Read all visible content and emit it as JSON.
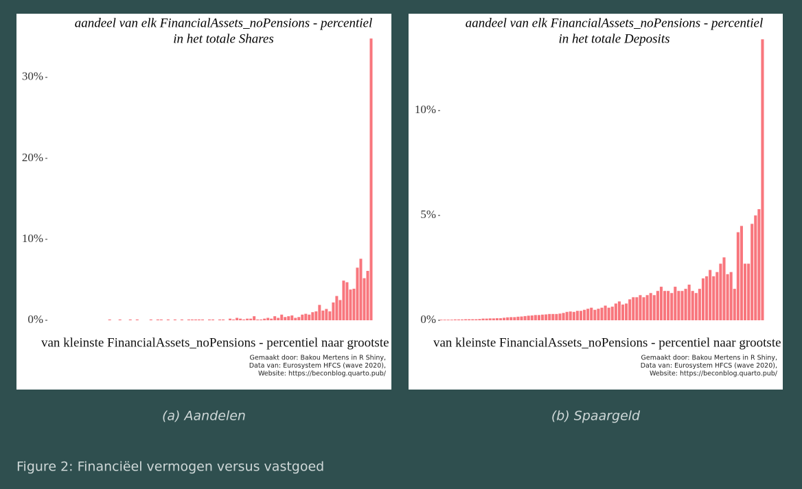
{
  "chart_data": [
    {
      "type": "bar",
      "title": [
        "aandeel van elk FinancialAssets_noPensions - percentiel",
        "in het totale Shares"
      ],
      "x_label": "van kleinste FinancialAssets_noPensions - percentiel naar grootste",
      "credits": [
        "Gemaakt door: Bakou Mertens in R Shiny,",
        "Data van: Eurosystem HFCS (wave 2020),",
        "Website: https://beconblog.quarto.pub/"
      ],
      "subcaption": "(a) Aandelen",
      "color": "#f8767d",
      "ylim": [
        0,
        36
      ],
      "yticks": [
        {
          "value": 0,
          "label": "0%"
        },
        {
          "value": 10,
          "label": "10%"
        },
        {
          "value": 20,
          "label": "20%"
        },
        {
          "value": 30,
          "label": "30%"
        }
      ],
      "values": [
        0,
        0,
        0,
        0,
        0,
        0,
        0,
        0,
        0,
        0,
        0,
        0,
        0,
        0,
        0,
        0,
        0,
        0.1,
        0,
        0,
        0.1,
        0,
        0,
        0.1,
        0,
        0.1,
        0,
        0,
        0,
        0.1,
        0,
        0.1,
        0.1,
        0,
        0.1,
        0,
        0.1,
        0,
        0.1,
        0,
        0.1,
        0.1,
        0.1,
        0.1,
        0.1,
        0,
        0.1,
        0.1,
        0,
        0.1,
        0.1,
        0,
        0.2,
        0.1,
        0.3,
        0.2,
        0.1,
        0.2,
        0.2,
        0.5,
        0.1,
        0.1,
        0.2,
        0.3,
        0.2,
        0.5,
        0.3,
        0.7,
        0.4,
        0.5,
        0.6,
        0.3,
        0.4,
        0.7,
        0.8,
        0.7,
        1.0,
        1.1,
        1.9,
        1.2,
        1.4,
        1.1,
        2.2,
        3.0,
        2.5,
        4.9,
        4.7,
        3.8,
        3.9,
        6.5,
        7.6,
        5.2,
        6.1,
        34.8
      ]
    },
    {
      "type": "bar",
      "title": [
        "aandeel van elk FinancialAssets_noPensions - percentiel",
        "in het totale Deposits"
      ],
      "x_label": "van kleinste FinancialAssets_noPensions - percentiel naar grootste",
      "credits": [
        "Gemaakt door: Bakou Mertens in R Shiny,",
        "Data van: Eurosystem HFCS (wave 2020),",
        "Website: https://beconblog.quarto.pub/"
      ],
      "subcaption": "(b) Spaargeld",
      "color": "#f8767d",
      "ylim": [
        0,
        13.9
      ],
      "yticks": [
        {
          "value": 0,
          "label": "0%"
        },
        {
          "value": 5,
          "label": "5%"
        },
        {
          "value": 10,
          "label": "10%"
        }
      ],
      "values": [
        0.03,
        0.03,
        0.03,
        0.03,
        0.04,
        0.04,
        0.04,
        0.05,
        0.05,
        0.05,
        0.05,
        0.06,
        0.08,
        0.08,
        0.09,
        0.09,
        0.1,
        0.1,
        0.12,
        0.14,
        0.15,
        0.15,
        0.17,
        0.18,
        0.2,
        0.22,
        0.23,
        0.25,
        0.25,
        0.27,
        0.28,
        0.3,
        0.3,
        0.3,
        0.32,
        0.35,
        0.4,
        0.42,
        0.4,
        0.45,
        0.45,
        0.5,
        0.55,
        0.6,
        0.5,
        0.55,
        0.6,
        0.7,
        0.6,
        0.65,
        0.8,
        0.9,
        0.75,
        0.8,
        1.0,
        1.1,
        1.1,
        1.2,
        1.1,
        1.2,
        1.3,
        1.2,
        1.4,
        1.6,
        1.4,
        1.4,
        1.3,
        1.6,
        1.4,
        1.4,
        1.5,
        1.7,
        1.4,
        1.3,
        1.5,
        2.0,
        2.1,
        2.4,
        2.1,
        2.3,
        2.7,
        3.0,
        2.2,
        2.3,
        1.5,
        4.2,
        4.5,
        2.7,
        2.7,
        4.6,
        5.0,
        5.3,
        13.4
      ]
    }
  ],
  "figure_caption": "Figure 2: Financiëel vermogen versus vastgoed"
}
